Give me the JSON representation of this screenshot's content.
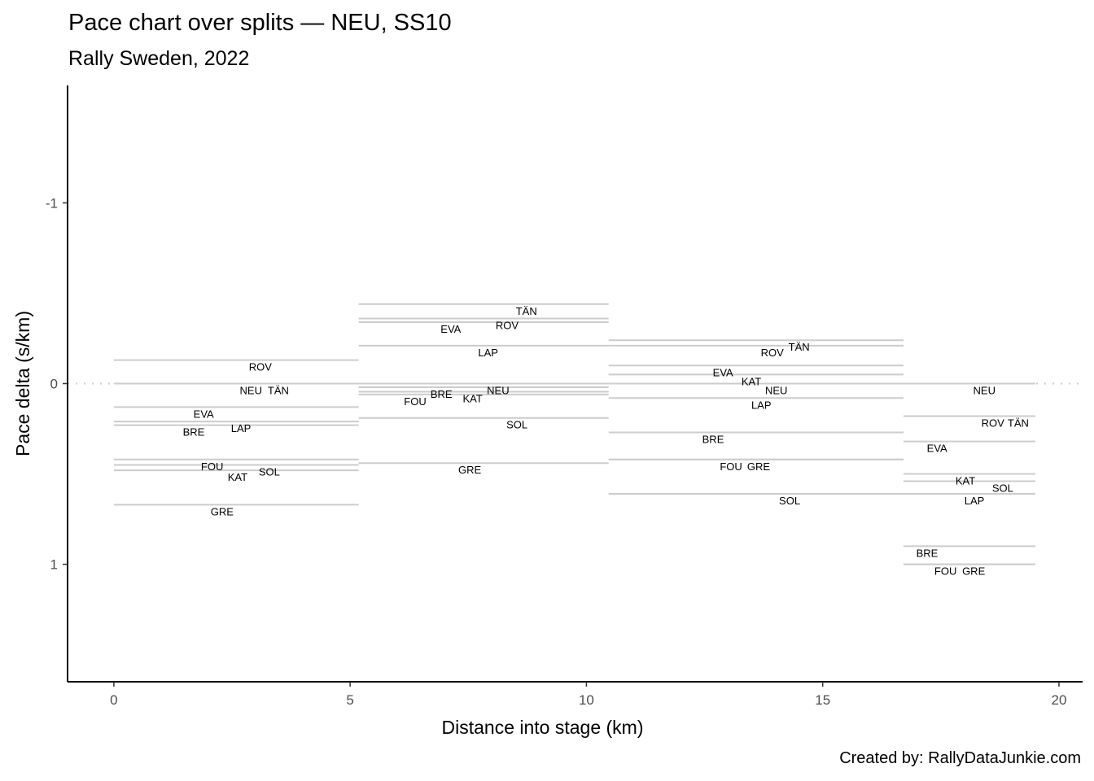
{
  "chart_data": {
    "type": "line",
    "title": "Pace chart over splits — NEU, SS10",
    "subtitle": "Rally Sweden, 2022",
    "caption": "Created by: RallyDataJunkie.com",
    "xlabel": "Distance into stage (km)",
    "ylabel": "Pace delta (s/km)",
    "xlim": [
      -0.98,
      20.5
    ],
    "ylim": [
      -1.65,
      1.65
    ],
    "y_reversed": true,
    "xticks": [
      0,
      5,
      10,
      15,
      20
    ],
    "yticks": [
      -1,
      0,
      1
    ],
    "grid": false,
    "reference_line": {
      "y": 0,
      "style": "dotted"
    },
    "line_color": "#cccccc",
    "splits": [
      {
        "start": 0,
        "end": 5.18,
        "drivers": [
          {
            "name": "ROV",
            "value": -0.13,
            "label_x": 3.1
          },
          {
            "name": "NEU",
            "value": 0,
            "label_x": 2.9
          },
          {
            "name": "TÄN",
            "value": 0,
            "label_x": 3.48
          },
          {
            "name": "EVA",
            "value": 0.13,
            "label_x": 1.9
          },
          {
            "name": "LAP",
            "value": 0.21,
            "label_x": 2.69
          },
          {
            "name": "BRE",
            "value": 0.23,
            "label_x": 1.69
          },
          {
            "name": "FOU",
            "value": 0.42,
            "label_x": 2.08
          },
          {
            "name": "SOL",
            "value": 0.45,
            "label_x": 3.29
          },
          {
            "name": "KAT",
            "value": 0.48,
            "label_x": 2.48
          },
          {
            "name": "GRE",
            "value": 0.67,
            "label_x": 2.29
          }
        ]
      },
      {
        "start": 5.18,
        "end": 10.47,
        "drivers": [
          {
            "name": "TÄN",
            "value": -0.44,
            "label_x": 8.73
          },
          {
            "name": "ROV",
            "value": -0.36,
            "label_x": 8.32
          },
          {
            "name": "EVA",
            "value": -0.34,
            "label_x": 7.13
          },
          {
            "name": "LAP",
            "value": -0.21,
            "label_x": 7.92
          },
          {
            "name": "NEU",
            "value": 0,
            "label_x": 8.13
          },
          {
            "name": "BRE",
            "value": 0.02,
            "label_x": 6.93
          },
          {
            "name": "KAT",
            "value": 0.045,
            "label_x": 7.73
          },
          {
            "name": "FOU",
            "value": 0.06,
            "label_x": 7.34
          },
          {
            "name": "SOL",
            "value": 0.19,
            "label_x": 8.53
          },
          {
            "name": "GRE",
            "value": 0.44,
            "label_x": 7.53
          }
        ]
      },
      {
        "start": 10.47,
        "end": 16.71,
        "drivers": [
          {
            "name": "TÄN",
            "value": -0.24,
            "label_x": 14.5
          },
          {
            "name": "ROV",
            "value": -0.21,
            "label_x": 14.07
          },
          {
            "name": "EVA",
            "value": -0.1,
            "label_x": 12.89
          },
          {
            "name": "KAT",
            "value": -0.05,
            "label_x": 13.49
          },
          {
            "name": "NEU",
            "value": 0,
            "label_x": 13.88
          },
          {
            "name": "LAP",
            "value": 0.08,
            "label_x": 13.7
          },
          {
            "name": "BRE",
            "value": 0.27,
            "label_x": 12.68
          },
          {
            "name": "FOU",
            "value": 0.42,
            "label_x": 13.06
          },
          {
            "name": "GRE",
            "value": 0.42,
            "label_x": 13.3
          },
          {
            "name": "SOL",
            "value": 0.61,
            "label_x": 14.3
          }
        ]
      },
      {
        "start": 16.71,
        "end": 19.5,
        "drivers": [
          {
            "name": "NEU",
            "value": 0,
            "label_x": 18.42
          },
          {
            "name": "ROV",
            "value": 0.18,
            "label_x": 18.6
          },
          {
            "name": "TÄN",
            "value": 0.18,
            "label_x": 19.0
          },
          {
            "name": "EVA",
            "value": 0.32,
            "label_x": 17.42
          },
          {
            "name": "KAT",
            "value": 0.5,
            "label_x": 18.02
          },
          {
            "name": "SOL",
            "value": 0.54,
            "label_x": 18.81
          },
          {
            "name": "LAP",
            "value": 0.61,
            "label_x": 18.21
          },
          {
            "name": "BRE",
            "value": 0.9,
            "label_x": 17.21
          },
          {
            "name": "FOU",
            "value": 1.0,
            "label_x": 17.6
          },
          {
            "name": "GRE",
            "value": 1.0,
            "label_x": 17.85
          }
        ]
      }
    ]
  }
}
